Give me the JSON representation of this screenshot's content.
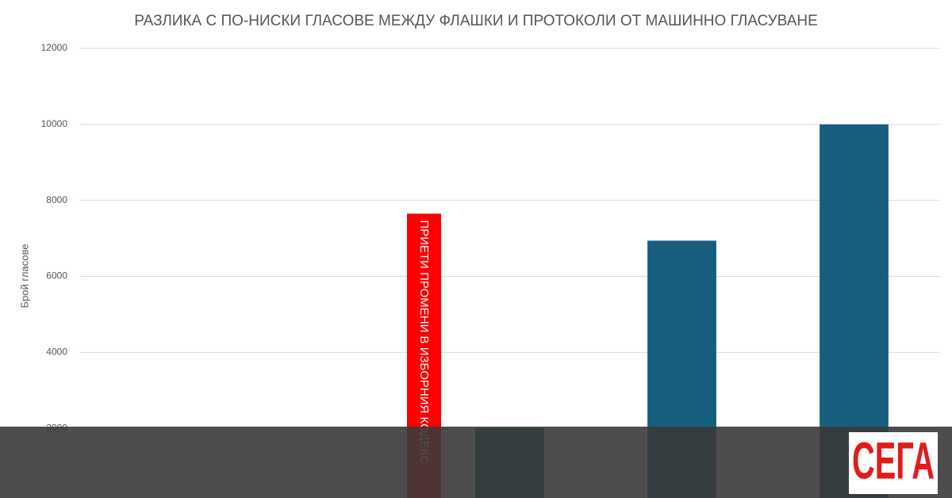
{
  "chart_data": {
    "type": "bar",
    "title": "РАЗЛИКА С ПО-НИСКИ ГЛАСОВЕ МЕЖДУ ФЛАШКИ И ПРОТОКОЛИ ОТ МАШИННО ГЛАСУВАНЕ",
    "y_label": "Брой гласове",
    "categories": [
      null,
      null,
      null,
      null,
      null
    ],
    "values": [
      null,
      null,
      2000,
      6940,
      10000
    ],
    "color": "#175e7e",
    "ylim": [
      0,
      12000
    ],
    "yticks": [
      2000,
      4000,
      6000,
      8000,
      10000,
      12000
    ],
    "grid": true,
    "annotation": {
      "text": "ПРИЕТИ ПРОМЕНИ В ИЗБОРНИЯ КОДЕКС",
      "value": 7650,
      "color": "#ff0000"
    }
  },
  "logo": "СЕГА"
}
